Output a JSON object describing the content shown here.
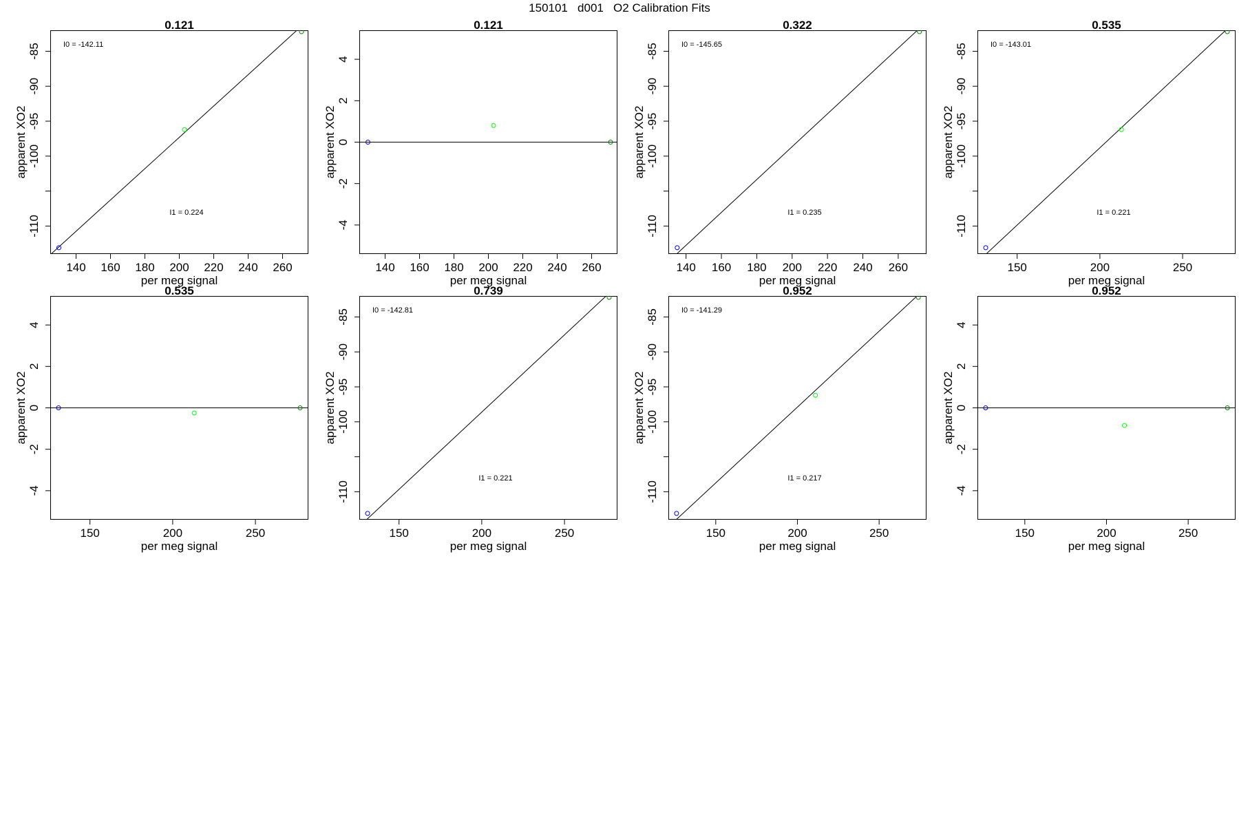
{
  "page_title": "150101   d001   O2 Calibration Fits",
  "chart_data": [
    {
      "type": "scatter",
      "title": "0.121",
      "xlabel": "per meg signal",
      "ylabel": "apparent XO2",
      "xlim": [
        125,
        275
      ],
      "ylim": [
        -114,
        -82
      ],
      "xticks": [
        140,
        160,
        180,
        200,
        220,
        240,
        260
      ],
      "yticks": [
        -110,
        -105,
        -100,
        -95,
        -90,
        -85
      ],
      "ytick_labels": [
        "-110",
        "",
        "-100",
        "-95",
        "-90",
        "-85"
      ],
      "points": [
        {
          "x": 130,
          "y": -113.1,
          "color": "#0000ff"
        },
        {
          "x": 203,
          "y": -96.2,
          "color": "#00ff00"
        },
        {
          "x": 271,
          "y": -82.2,
          "color": "#008800"
        }
      ],
      "fit_line": {
        "intercept": -142.11,
        "slope": 0.224
      },
      "annotations": [
        "I0 =  -142.11",
        "I1 =  0.224"
      ]
    },
    {
      "type": "scatter",
      "title": "0.121",
      "xlabel": "per meg signal",
      "ylabel": "apparent XO2",
      "xlim": [
        125,
        275
      ],
      "ylim": [
        -5.4,
        5.4
      ],
      "xticks": [
        140,
        160,
        180,
        200,
        220,
        240,
        260
      ],
      "yticks": [
        -4,
        -2,
        0,
        2,
        4
      ],
      "ytick_labels": [
        "-4",
        "-2",
        "0",
        "2",
        "4"
      ],
      "points": [
        {
          "x": 130,
          "y": 0,
          "color": "#0000ff"
        },
        {
          "x": 203,
          "y": 0.8,
          "color": "#00ff00"
        },
        {
          "x": 271,
          "y": 0,
          "color": "#008800"
        }
      ],
      "hline": 0,
      "annotations": []
    },
    {
      "type": "scatter",
      "title": "0.322",
      "xlabel": "per meg signal",
      "ylabel": "apparent XO2",
      "xlim": [
        130,
        276
      ],
      "ylim": [
        -114,
        -82
      ],
      "xticks": [
        140,
        160,
        180,
        200,
        220,
        240,
        260
      ],
      "yticks": [
        -110,
        -105,
        -100,
        -95,
        -90,
        -85
      ],
      "ytick_labels": [
        "-110",
        "",
        "-100",
        "-95",
        "-90",
        "-85"
      ],
      "points": [
        {
          "x": 135,
          "y": -113.1,
          "color": "#0000ff"
        },
        {
          "x": 272,
          "y": -82.2,
          "color": "#008800"
        }
      ],
      "fit_line": {
        "intercept": -145.65,
        "slope": 0.235
      },
      "annotations": [
        "I0 =  -145.65",
        "I1 =  0.235"
      ]
    },
    {
      "type": "scatter",
      "title": "0.535",
      "xlabel": "per meg signal",
      "ylabel": "apparent XO2",
      "xlim": [
        126,
        282
      ],
      "ylim": [
        -114,
        -82
      ],
      "xticks": [
        150,
        200,
        250
      ],
      "yticks": [
        -110,
        -105,
        -100,
        -95,
        -90,
        -85
      ],
      "ytick_labels": [
        "-110",
        "",
        "-100",
        "-95",
        "-90",
        "-85"
      ],
      "points": [
        {
          "x": 131,
          "y": -113.1,
          "color": "#0000ff"
        },
        {
          "x": 213,
          "y": -96.2,
          "color": "#00ff00"
        },
        {
          "x": 277,
          "y": -82.2,
          "color": "#008800"
        }
      ],
      "fit_line": {
        "intercept": -143.01,
        "slope": 0.221
      },
      "annotations": [
        "I0 =  -143.01",
        "I1 =  0.221"
      ]
    },
    {
      "type": "scatter",
      "title": "0.535",
      "xlabel": "per meg signal",
      "ylabel": "apparent XO2",
      "xlim": [
        126,
        282
      ],
      "ylim": [
        -5.4,
        5.4
      ],
      "xticks": [
        150,
        200,
        250
      ],
      "yticks": [
        -4,
        -2,
        0,
        2,
        4
      ],
      "ytick_labels": [
        "-4",
        "-2",
        "0",
        "2",
        "4"
      ],
      "points": [
        {
          "x": 131,
          "y": 0,
          "color": "#0000ff"
        },
        {
          "x": 213,
          "y": -0.25,
          "color": "#00ff00"
        },
        {
          "x": 277,
          "y": 0,
          "color": "#008800"
        }
      ],
      "hline": 0,
      "annotations": []
    },
    {
      "type": "scatter",
      "title": "0.739",
      "xlabel": "per meg signal",
      "ylabel": "apparent XO2",
      "xlim": [
        126,
        282
      ],
      "ylim": [
        -114,
        -82
      ],
      "xticks": [
        150,
        200,
        250
      ],
      "yticks": [
        -110,
        -105,
        -100,
        -95,
        -90,
        -85
      ],
      "ytick_labels": [
        "-110",
        "",
        "-100",
        "-95",
        "-90",
        "-85"
      ],
      "points": [
        {
          "x": 131,
          "y": -113.1,
          "color": "#0000ff"
        },
        {
          "x": 277,
          "y": -82.2,
          "color": "#008800"
        }
      ],
      "fit_line": {
        "intercept": -142.81,
        "slope": 0.221
      },
      "annotations": [
        "I0 =  -142.81",
        "I1 =  0.221"
      ]
    },
    {
      "type": "scatter",
      "title": "0.952",
      "xlabel": "per meg signal",
      "ylabel": "apparent XO2",
      "xlim": [
        121,
        279
      ],
      "ylim": [
        -114,
        -82
      ],
      "xticks": [
        150,
        200,
        250
      ],
      "yticks": [
        -110,
        -105,
        -100,
        -95,
        -90,
        -85
      ],
      "ytick_labels": [
        "-110",
        "",
        "-100",
        "-95",
        "-90",
        "-85"
      ],
      "points": [
        {
          "x": 126,
          "y": -113.1,
          "color": "#0000ff"
        },
        {
          "x": 211,
          "y": -96.2,
          "color": "#00ff00"
        },
        {
          "x": 274,
          "y": -82.2,
          "color": "#008800"
        }
      ],
      "fit_line": {
        "intercept": -141.29,
        "slope": 0.217
      },
      "annotations": [
        "I0 =  -141.29",
        "I1 =  0.217"
      ]
    },
    {
      "type": "scatter",
      "title": "0.952",
      "xlabel": "per meg signal",
      "ylabel": "apparent XO2",
      "xlim": [
        121,
        279
      ],
      "ylim": [
        -5.4,
        5.4
      ],
      "xticks": [
        150,
        200,
        250
      ],
      "yticks": [
        -4,
        -2,
        0,
        2,
        4
      ],
      "ytick_labels": [
        "-4",
        "-2",
        "0",
        "2",
        "4"
      ],
      "points": [
        {
          "x": 126,
          "y": 0,
          "color": "#0000ff"
        },
        {
          "x": 211,
          "y": -0.85,
          "color": "#00ff00"
        },
        {
          "x": 274,
          "y": 0,
          "color": "#008800"
        }
      ],
      "hline": 0,
      "annotations": []
    }
  ]
}
